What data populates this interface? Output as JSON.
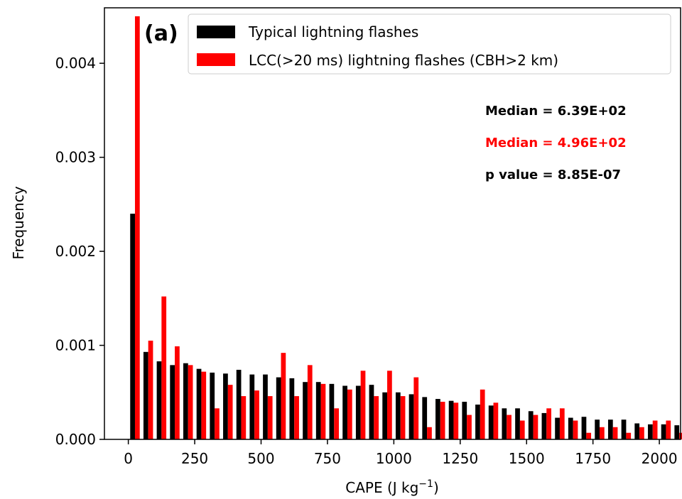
{
  "chart_data": {
    "type": "bar",
    "panel_label": "(a)",
    "xlabel_main": "CAPE (J kg",
    "xlabel_sup": "−1",
    "xlabel_end": ")",
    "ylabel": "Frequency",
    "xlim": [
      -90,
      2080
    ],
    "ylim": [
      0,
      0.00459
    ],
    "xticks": [
      0,
      250,
      500,
      750,
      1000,
      1250,
      1500,
      1750,
      2000
    ],
    "xtick_labels": [
      "0",
      "250",
      "500",
      "750",
      "1000",
      "1250",
      "1500",
      "1750",
      "2000"
    ],
    "yticks": [
      0,
      0.001,
      0.002,
      0.003,
      0.004
    ],
    "ytick_labels": [
      "0.000",
      "0.001",
      "0.002",
      "0.003",
      "0.004"
    ],
    "bin_width": 50,
    "x_start": 0,
    "series": [
      {
        "name": "Typical lightning flashes",
        "color": "#000000",
        "values": [
          0.0024,
          0.00093,
          0.00083,
          0.00079,
          0.00081,
          0.00075,
          0.00071,
          0.0007,
          0.00074,
          0.00069,
          0.00069,
          0.00066,
          0.00065,
          0.00061,
          0.00061,
          0.00059,
          0.00057,
          0.00057,
          0.00058,
          0.0005,
          0.0005,
          0.00048,
          0.00045,
          0.00043,
          0.00041,
          0.0004,
          0.00037,
          0.00036,
          0.00033,
          0.00033,
          0.0003,
          0.00028,
          0.00023,
          0.00023,
          0.00024,
          0.00021,
          0.00021,
          0.00021,
          0.00017,
          0.00016,
          0.00016,
          0.00015,
          0.00013
        ]
      },
      {
        "name": "LCC(>20 ms) lightning flashes (CBH>2 km)",
        "color": "#ff0000",
        "values": [
          0.0045,
          0.00105,
          0.00152,
          0.00099,
          0.00079,
          0.00072,
          0.00033,
          0.00058,
          0.00046,
          0.00052,
          0.00046,
          0.00092,
          0.00046,
          0.00079,
          0.00059,
          0.00033,
          0.00053,
          0.00073,
          0.00046,
          0.00073,
          0.00046,
          0.00066,
          0.00013,
          0.0004,
          0.00039,
          0.00026,
          0.00053,
          0.00039,
          0.00026,
          0.0002,
          0.00026,
          0.00033,
          0.00033,
          0.0002,
          7e-05,
          0.00013,
          0.00013,
          7e-05,
          0.00013,
          0.0002,
          0.0002,
          7e-05,
          0.00013
        ]
      }
    ],
    "legend_position": "top-right",
    "annotations": [
      {
        "text": "Median = 6.39E+02",
        "color": "#000000"
      },
      {
        "text": "Median = 4.96E+02",
        "color": "#ff0000"
      },
      {
        "text": "p value = 8.85E-07",
        "color": "#000000"
      }
    ]
  }
}
